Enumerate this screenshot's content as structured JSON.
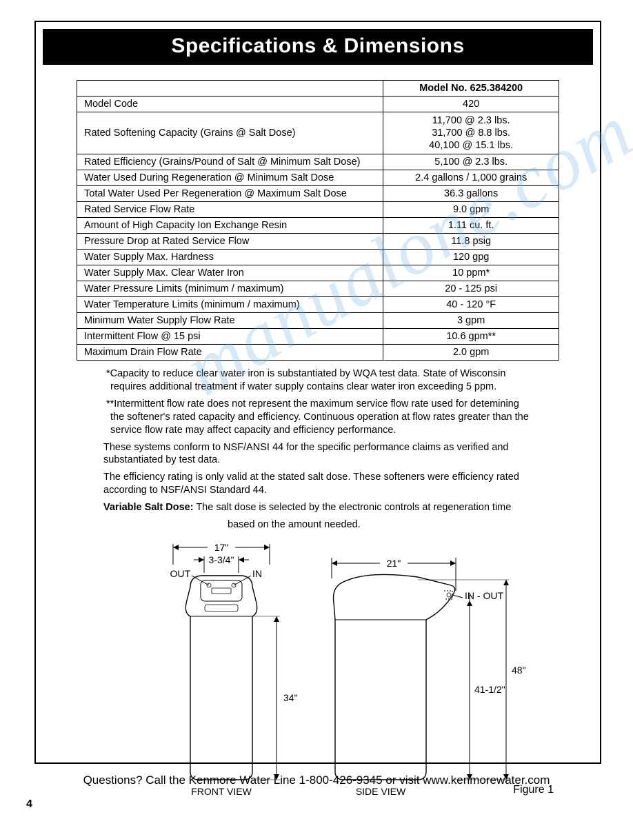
{
  "title": "Specifications & Dimensions",
  "table": {
    "header_label": "Model No. 625.384200",
    "rows": [
      {
        "label": "Model Code",
        "value": "420"
      },
      {
        "label": "Rated Softening Capacity (Grains @ Salt Dose)",
        "value": "11,700 @ 2.3 lbs.\n31,700 @ 8.8 lbs.\n40,100 @ 15.1 lbs."
      },
      {
        "label": "Rated Efficiency (Grains/Pound of Salt @ Minimum Salt Dose)",
        "value": "5,100 @ 2.3 lbs."
      },
      {
        "label": "Water Used During Regeneration @ Minimum Salt Dose",
        "value": "2.4 gallons / 1,000 grains"
      },
      {
        "label": "Total Water Used Per Regeneration @ Maximum Salt Dose",
        "value": "36.3 gallons"
      },
      {
        "label": "Rated Service Flow Rate",
        "value": "9.0 gpm"
      },
      {
        "label": "Amount of High Capacity Ion Exchange Resin",
        "value": "1.11 cu. ft."
      },
      {
        "label": "Pressure Drop at Rated Service Flow",
        "value": "11.8 psig"
      },
      {
        "label": "Water Supply Max. Hardness",
        "value": "120 gpg"
      },
      {
        "label": "Water Supply Max. Clear Water Iron",
        "value": "10 ppm*"
      },
      {
        "label": "Water Pressure Limits (minimum / maximum)",
        "value": "20 - 125 psi"
      },
      {
        "label": "Water Temperature Limits (minimum / maximum)",
        "value": "40 - 120 °F"
      },
      {
        "label": "Minimum Water Supply Flow Rate",
        "value": "3 gpm"
      },
      {
        "label": "Intermittent Flow @ 15 psi",
        "value": "10.6 gpm**"
      },
      {
        "label": "Maximum Drain Flow Rate",
        "value": "2.0 gpm"
      }
    ]
  },
  "notes": {
    "n1": "*Capacity to reduce clear water iron is substantiated by WQA test data.  State of Wisconsin requires additional treatment if water supply contains clear water iron exceeding 5 ppm.",
    "n2": "**Intermittent flow rate does not represent the maximum service flow rate used for detemining the softener's rated capacity and efficiency.  Continuous operation at flow rates greater than the service flow rate may affect capacity and efficiency performance.",
    "n3": "These systems conform to NSF/ANSI 44 for the specific performance claims as verified and substantiated by test data.",
    "n4": "The efficiency rating is only valid at the stated salt dose.  These softeners were efficiency rated according to NSF/ANSI Standard 44.",
    "n5_bold": "Variable Salt Dose:",
    "n5_rest": " The salt dose is selected by the electronic controls at regeneration time",
    "n5_line2": "based on the amount needed."
  },
  "diagram": {
    "front": {
      "width_top": "17\"",
      "width_ports": "3-3/4\"",
      "out_label": "OUT",
      "in_label": "IN",
      "height_body": "34\"",
      "view_label": "FRONT VIEW"
    },
    "side": {
      "width_top": "21\"",
      "inout_label": "IN - OUT",
      "height_port": "41-1/2\"",
      "height_total": "48\"",
      "view_label": "SIDE VIEW"
    },
    "figure": "Figure 1"
  },
  "footer": "Questions? Call the Kenmore Water Line 1-800-426-9345 or visit www.kenmorewater.com",
  "page_number": "4",
  "watermark": "manualone.com",
  "colors": {
    "text": "#000000",
    "bg": "#ffffff",
    "title_bg": "#000000",
    "title_fg": "#ffffff",
    "watermark": "#6bb3e8"
  }
}
